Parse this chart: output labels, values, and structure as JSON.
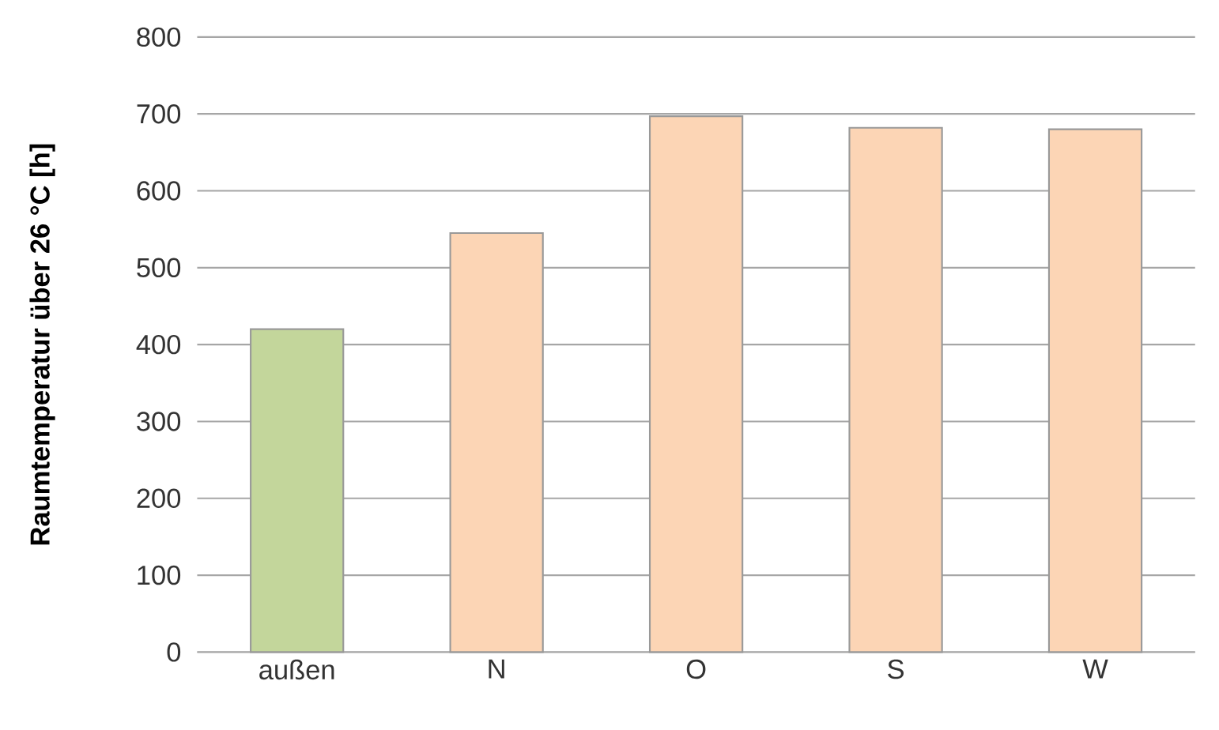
{
  "chart_data": {
    "type": "bar",
    "ylabel": "Raumtemperatur über 26 °C [h]",
    "categories": [
      "außen",
      "N",
      "O",
      "S",
      "W"
    ],
    "values": [
      420,
      545,
      697,
      682,
      680
    ],
    "colors": [
      "#c3d69b",
      "#fcd5b5",
      "#fcd5b5",
      "#fcd5b5",
      "#fcd5b5"
    ],
    "ylim": [
      0,
      800
    ],
    "yticks": [
      0,
      100,
      200,
      300,
      400,
      500,
      600,
      700,
      800
    ],
    "grid": "y"
  }
}
